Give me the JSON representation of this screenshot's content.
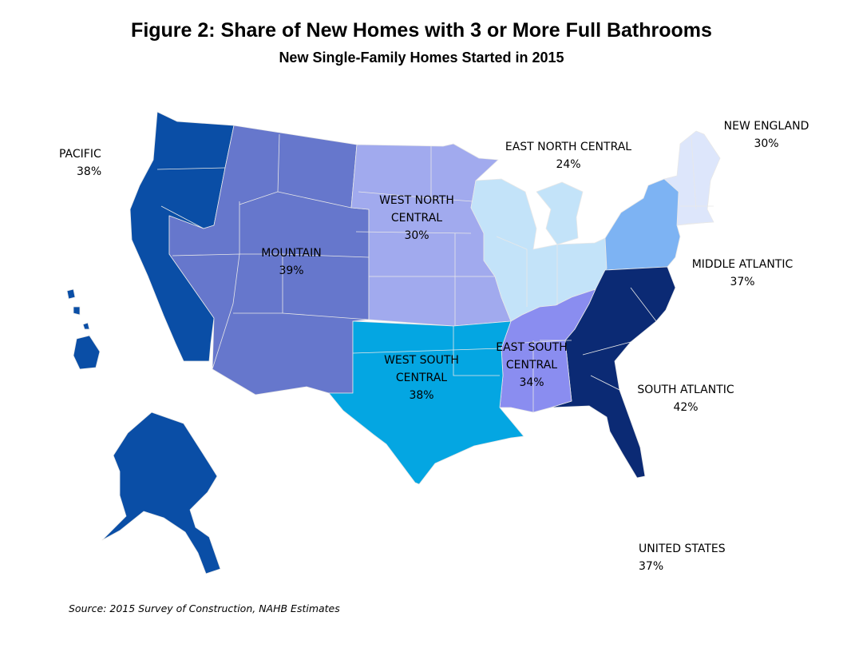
{
  "title": "Figure 2: Share of New Homes with 3 or More Full Bathrooms",
  "subtitle": "New Single-Family Homes Started in 2015",
  "source": "Source: 2015 Survey of Construction, NAHB Estimates",
  "regions": {
    "pacific": {
      "name": "PACIFIC",
      "value": "38%",
      "color": "#0a4ea6"
    },
    "mountain": {
      "name": "MOUNTAIN",
      "value": "39%",
      "color": "#6677cc"
    },
    "west_north_central": {
      "name1": "WEST NORTH",
      "name2": "CENTRAL",
      "value": "30%",
      "color": "#a1aaee"
    },
    "east_north_central": {
      "name": "EAST NORTH CENTRAL",
      "value": "24%",
      "color": "#c3e3f9"
    },
    "new_england": {
      "name": "NEW ENGLAND",
      "value": "30%",
      "color": "#dde6fb"
    },
    "middle_atlantic": {
      "name": "MIDDLE ATLANTIC",
      "value": "37%",
      "color": "#7db3f3"
    },
    "south_atlantic": {
      "name": "SOUTH ATLANTIC",
      "value": "42%",
      "color": "#0b2a74"
    },
    "east_south_central": {
      "name1": "EAST SOUTH",
      "name2": "CENTRAL",
      "value": "34%",
      "color": "#8a8df0"
    },
    "west_south_central": {
      "name1": "WEST SOUTH",
      "name2": "CENTRAL",
      "value": "38%",
      "color": "#04a6e2"
    },
    "united_states": {
      "name": "UNITED STATES",
      "value": "37%"
    }
  }
}
